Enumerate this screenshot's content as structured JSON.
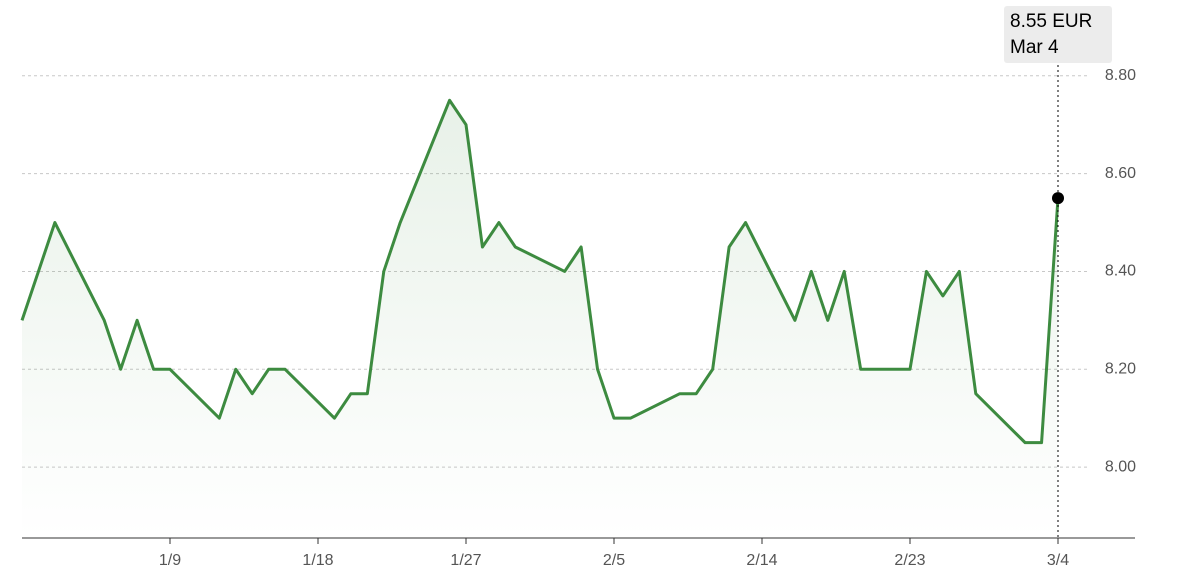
{
  "chart_data": {
    "type": "line",
    "x": [
      "12/31",
      "1/2",
      "1/5",
      "1/6",
      "1/7",
      "1/8",
      "1/9",
      "1/12",
      "1/13",
      "1/14",
      "1/15",
      "1/16",
      "1/19",
      "1/20",
      "1/21",
      "1/22",
      "1/23",
      "1/26",
      "1/27",
      "1/28",
      "1/29",
      "1/30",
      "2/2",
      "2/3",
      "2/4",
      "2/5",
      "2/6",
      "2/9",
      "2/10",
      "2/11",
      "2/12",
      "2/13",
      "2/16",
      "2/17",
      "2/18",
      "2/19",
      "2/20",
      "2/21",
      "2/23",
      "2/24",
      "2/25",
      "2/26",
      "2/27",
      "3/2",
      "3/3",
      "3/4"
    ],
    "series": [
      {
        "color": "#3d8b40",
        "values": [
          8.3,
          8.5,
          8.3,
          8.2,
          8.3,
          8.2,
          8.2,
          8.1,
          8.2,
          8.15,
          8.2,
          8.2,
          8.1,
          8.15,
          8.15,
          8.4,
          8.5,
          8.75,
          8.7,
          8.45,
          8.5,
          8.45,
          8.4,
          8.45,
          8.2,
          8.1,
          8.1,
          8.15,
          8.15,
          8.2,
          8.45,
          8.5,
          8.3,
          8.4,
          8.3,
          8.4,
          8.2,
          8.2,
          8.2,
          8.4,
          8.35,
          8.4,
          8.15,
          8.05,
          8.05,
          8.55
        ]
      }
    ],
    "xlim": [
      "12/31",
      "3/4"
    ],
    "xticks": [
      "1/9",
      "1/18",
      "1/27",
      "2/5",
      "2/14",
      "2/23",
      "3/4"
    ],
    "ylim": [
      7.855,
      8.955
    ],
    "yticks": [
      {
        "value": 8.0,
        "label": "8.00"
      },
      {
        "value": 8.2,
        "label": "8.20"
      },
      {
        "value": 8.4,
        "label": "8.40"
      },
      {
        "value": 8.6,
        "label": "8.60"
      },
      {
        "value": 8.8,
        "label": "8.80"
      }
    ],
    "grid": true,
    "tooltip": {
      "value_label": "8.55 EUR",
      "date": "Mar 4"
    }
  }
}
